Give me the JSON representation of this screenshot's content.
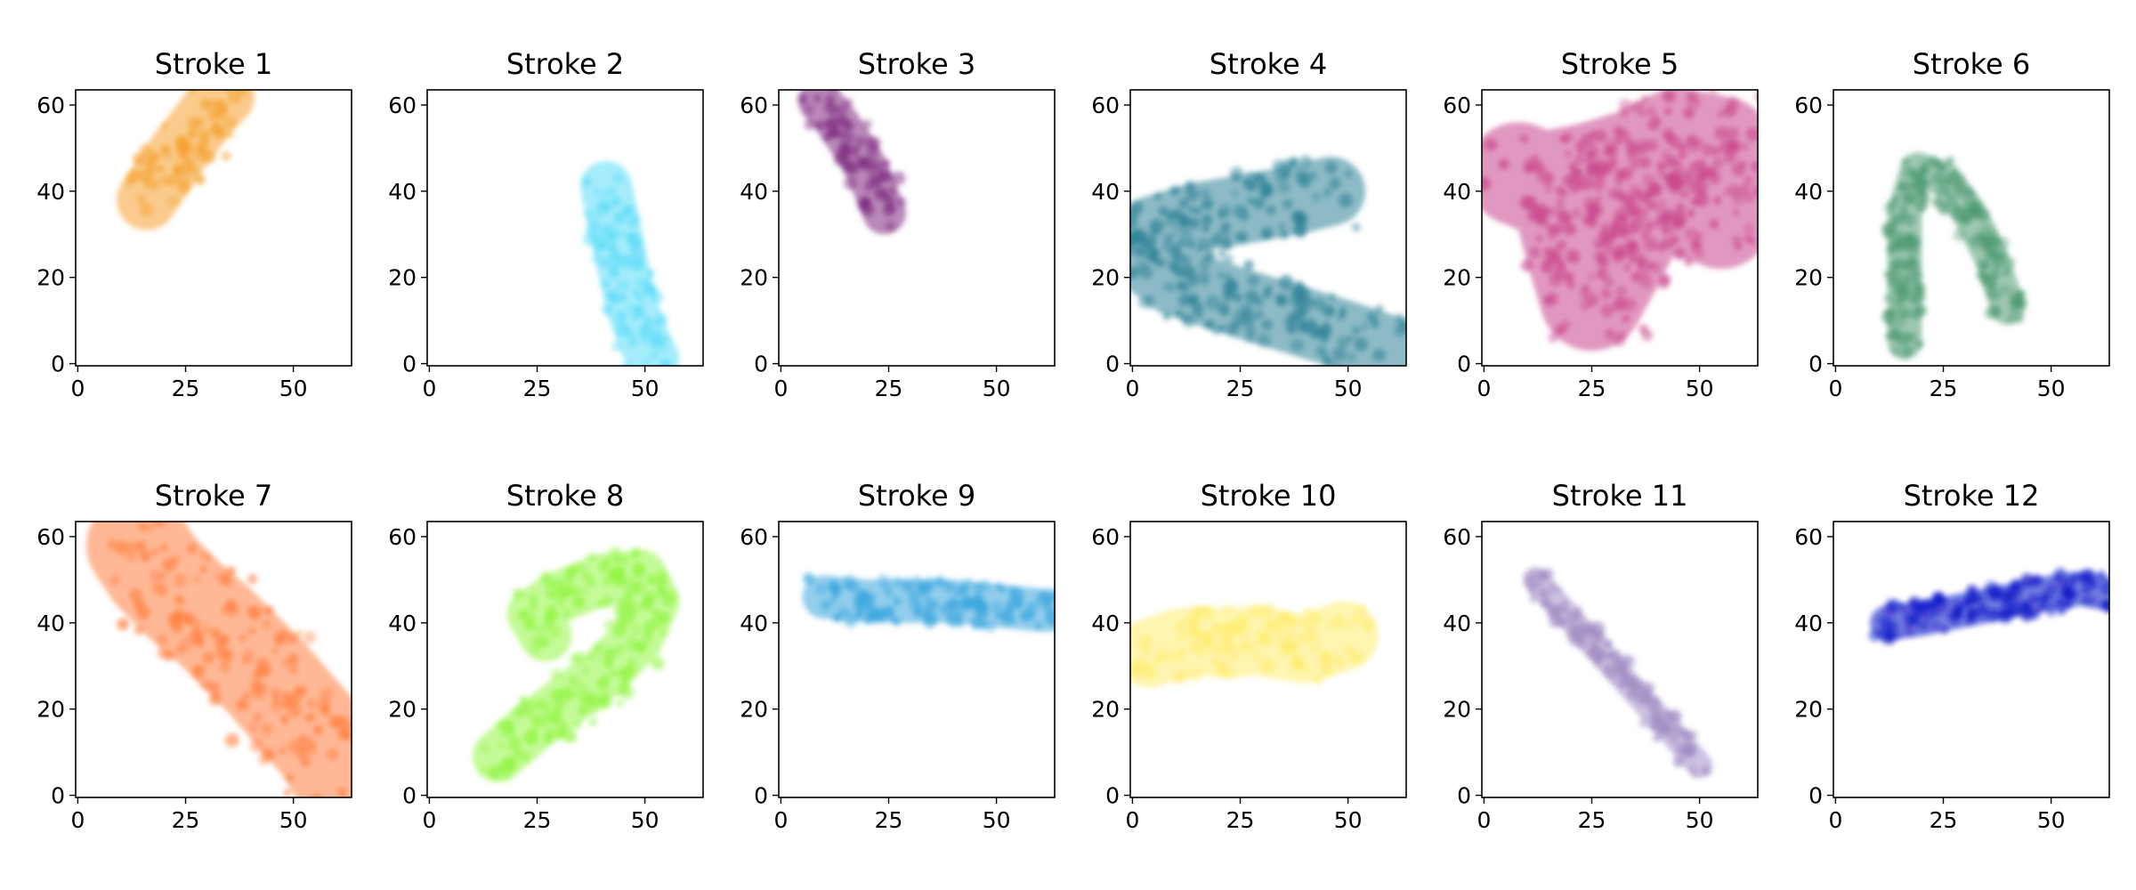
{
  "figure": {
    "xlim": [
      -0.5,
      63.5
    ],
    "ylim": [
      63.5,
      -0.5
    ],
    "xticks": [
      0,
      25,
      50
    ],
    "yticks": [
      0,
      20,
      40,
      60
    ]
  },
  "chart_data": [
    {
      "type": "heatmap",
      "title": "Stroke 1",
      "color": "#F5A02D",
      "width": 7,
      "path": [
        [
          16,
          38
        ],
        [
          20,
          44
        ],
        [
          24,
          50
        ],
        [
          28,
          55
        ],
        [
          31,
          59
        ],
        [
          34,
          62
        ]
      ]
    },
    {
      "type": "heatmap",
      "title": "Stroke 2",
      "color": "#5CDCF8",
      "width": 6,
      "path": [
        [
          41,
          41
        ],
        [
          43,
          32
        ],
        [
          45,
          22
        ],
        [
          47,
          13
        ],
        [
          50,
          5
        ],
        [
          52,
          1
        ]
      ]
    },
    {
      "type": "heatmap",
      "title": "Stroke 3",
      "color": "#7F2B80",
      "width": 5,
      "path": [
        [
          9,
          61
        ],
        [
          13,
          56
        ],
        [
          17,
          50
        ],
        [
          20,
          45
        ],
        [
          22,
          40
        ],
        [
          24,
          35
        ]
      ]
    },
    {
      "type": "heatmap",
      "title": "Stroke 4",
      "color": "#2E8297",
      "width": 8,
      "path": [
        [
          60,
          3
        ],
        [
          48,
          7
        ],
        [
          35,
          11
        ],
        [
          22,
          15
        ],
        [
          10,
          19
        ],
        [
          2,
          25
        ],
        [
          5,
          31
        ],
        [
          15,
          34
        ],
        [
          27,
          36
        ],
        [
          38,
          38
        ],
        [
          46,
          40
        ]
      ]
    },
    {
      "type": "heatmap",
      "title": "Stroke 5",
      "color": "#C9468C",
      "width": 12,
      "path": [
        [
          8,
          44
        ],
        [
          18,
          40
        ],
        [
          22,
          25
        ],
        [
          25,
          15
        ],
        [
          30,
          24
        ],
        [
          36,
          36
        ],
        [
          42,
          42
        ],
        [
          48,
          37
        ],
        [
          55,
          34
        ],
        [
          62,
          40
        ],
        [
          55,
          50
        ],
        [
          45,
          52
        ],
        [
          35,
          47
        ],
        [
          25,
          44
        ],
        [
          15,
          42
        ]
      ]
    },
    {
      "type": "heatmap",
      "title": "Stroke 6",
      "color": "#4E9A72",
      "width": 4,
      "path": [
        [
          16,
          5
        ],
        [
          16,
          20
        ],
        [
          16,
          35
        ],
        [
          19,
          45
        ],
        [
          25,
          43
        ],
        [
          31,
          35
        ],
        [
          36,
          25
        ],
        [
          40,
          13
        ]
      ]
    },
    {
      "type": "heatmap",
      "title": "Stroke 7",
      "color": "#FF7E3E",
      "width": 12,
      "path": [
        [
          14,
          58
        ],
        [
          18,
          52
        ],
        [
          25,
          45
        ],
        [
          32,
          39
        ],
        [
          38,
          33
        ],
        [
          44,
          27
        ],
        [
          50,
          20
        ],
        [
          57,
          12
        ],
        [
          62,
          4
        ]
      ]
    },
    {
      "type": "heatmap",
      "title": "Stroke 8",
      "color": "#94F545",
      "width": 6,
      "path": [
        [
          16,
          9
        ],
        [
          24,
          16
        ],
        [
          32,
          22
        ],
        [
          40,
          28
        ],
        [
          48,
          36
        ],
        [
          52,
          45
        ],
        [
          49,
          51
        ],
        [
          40,
          50
        ],
        [
          30,
          46
        ],
        [
          24,
          42
        ],
        [
          27,
          37
        ]
      ]
    },
    {
      "type": "heatmap",
      "title": "Stroke 9",
      "color": "#3AA6DE",
      "width": 5,
      "path": [
        [
          10,
          46
        ],
        [
          20,
          45
        ],
        [
          30,
          45
        ],
        [
          40,
          45
        ],
        [
          50,
          44
        ],
        [
          60,
          43
        ],
        [
          63,
          43
        ]
      ]
    },
    {
      "type": "heatmap",
      "title": "Stroke 10",
      "color": "#FFEC6E",
      "width": 8,
      "path": [
        [
          4,
          33
        ],
        [
          10,
          35
        ],
        [
          16,
          36
        ],
        [
          22,
          35
        ],
        [
          28,
          36
        ],
        [
          34,
          35
        ],
        [
          40,
          34
        ],
        [
          46,
          36
        ],
        [
          49,
          37
        ]
      ]
    },
    {
      "type": "heatmap",
      "title": "Stroke 11",
      "color": "#A28EC5",
      "width": 3,
      "path": [
        [
          12,
          50
        ],
        [
          20,
          41
        ],
        [
          28,
          32
        ],
        [
          36,
          23
        ],
        [
          44,
          14
        ],
        [
          50,
          7
        ]
      ]
    },
    {
      "type": "heatmap",
      "title": "Stroke 12",
      "color": "#0A16C8",
      "width": 4,
      "path": [
        [
          12,
          40
        ],
        [
          20,
          41
        ],
        [
          30,
          43
        ],
        [
          40,
          45
        ],
        [
          50,
          47
        ],
        [
          57,
          48
        ],
        [
          62,
          47
        ]
      ]
    }
  ]
}
